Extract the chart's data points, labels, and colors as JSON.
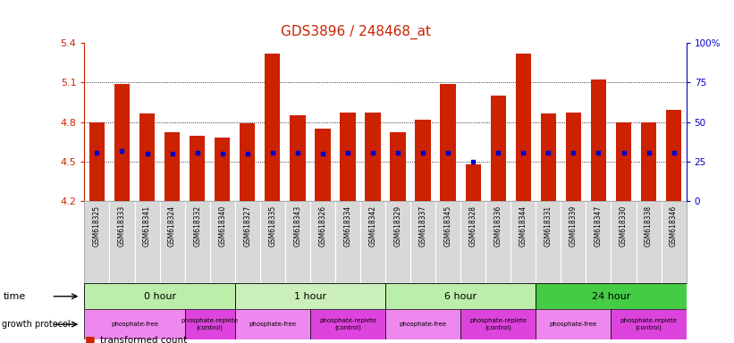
{
  "title": "GDS3896 / 248468_at",
  "samples": [
    "GSM618325",
    "GSM618333",
    "GSM618341",
    "GSM618324",
    "GSM618332",
    "GSM618340",
    "GSM618327",
    "GSM618335",
    "GSM618343",
    "GSM618326",
    "GSM618334",
    "GSM618342",
    "GSM618329",
    "GSM618337",
    "GSM618345",
    "GSM618328",
    "GSM618336",
    "GSM618344",
    "GSM618331",
    "GSM618339",
    "GSM618347",
    "GSM618330",
    "GSM618338",
    "GSM618346"
  ],
  "bar_values": [
    4.795,
    5.092,
    4.865,
    4.72,
    4.695,
    4.685,
    4.79,
    5.32,
    4.855,
    4.75,
    4.87,
    4.87,
    4.72,
    4.82,
    5.09,
    4.48,
    5.0,
    5.32,
    4.865,
    4.875,
    5.12,
    4.795,
    4.795,
    4.89
  ],
  "percentile_values": [
    4.565,
    4.578,
    4.561,
    4.561,
    4.568,
    4.559,
    4.562,
    4.565,
    4.568,
    4.562,
    4.565,
    4.565,
    4.565,
    4.565,
    4.565,
    4.502,
    4.565,
    4.565,
    4.565,
    4.565,
    4.565,
    4.565,
    4.565,
    4.565
  ],
  "ymin": 4.2,
  "ymax": 5.4,
  "yticks": [
    4.2,
    4.5,
    4.8,
    5.1,
    5.4
  ],
  "ytick_labels": [
    "4.2",
    "4.5",
    "4.8",
    "5.1",
    "5.4"
  ],
  "right_yticks_pct": [
    0,
    25,
    50,
    75,
    100
  ],
  "right_ytick_labels": [
    "0",
    "25",
    "50",
    "75",
    "100%"
  ],
  "grid_lines": [
    4.5,
    4.8,
    5.1
  ],
  "bar_color": "#cc2200",
  "percentile_color": "#0000cc",
  "bg_color": "#ffffff",
  "title_color": "#cc2200",
  "label_bg": "#d8d8d8",
  "label_border": "#aaaaaa",
  "time_groups": [
    {
      "label": "0 hour",
      "start": 0,
      "end": 5,
      "color": "#bbeeaa"
    },
    {
      "label": "1 hour",
      "start": 6,
      "end": 11,
      "color": "#ccf0bb"
    },
    {
      "label": "6 hour",
      "start": 12,
      "end": 17,
      "color": "#bbeeaa"
    },
    {
      "label": "24 hour",
      "start": 18,
      "end": 23,
      "color": "#44cc44"
    }
  ],
  "protocol_groups": [
    {
      "label": "phosphate-free",
      "start": 0,
      "end": 3,
      "color": "#ee88ee"
    },
    {
      "label": "phosphate-replete\n(control)",
      "start": 4,
      "end": 5,
      "color": "#dd44dd"
    },
    {
      "label": "phosphate-free",
      "start": 6,
      "end": 8,
      "color": "#ee88ee"
    },
    {
      "label": "phosphate-replete\n(control)",
      "start": 9,
      "end": 11,
      "color": "#dd44dd"
    },
    {
      "label": "phosphate-free",
      "start": 12,
      "end": 14,
      "color": "#ee88ee"
    },
    {
      "label": "phosphate-replete\n(control)",
      "start": 15,
      "end": 17,
      "color": "#dd44dd"
    },
    {
      "label": "phosphate-free",
      "start": 18,
      "end": 20,
      "color": "#ee88ee"
    },
    {
      "label": "phosphate-replete\n(control)",
      "start": 21,
      "end": 23,
      "color": "#dd44dd"
    }
  ],
  "n_samples": 24
}
